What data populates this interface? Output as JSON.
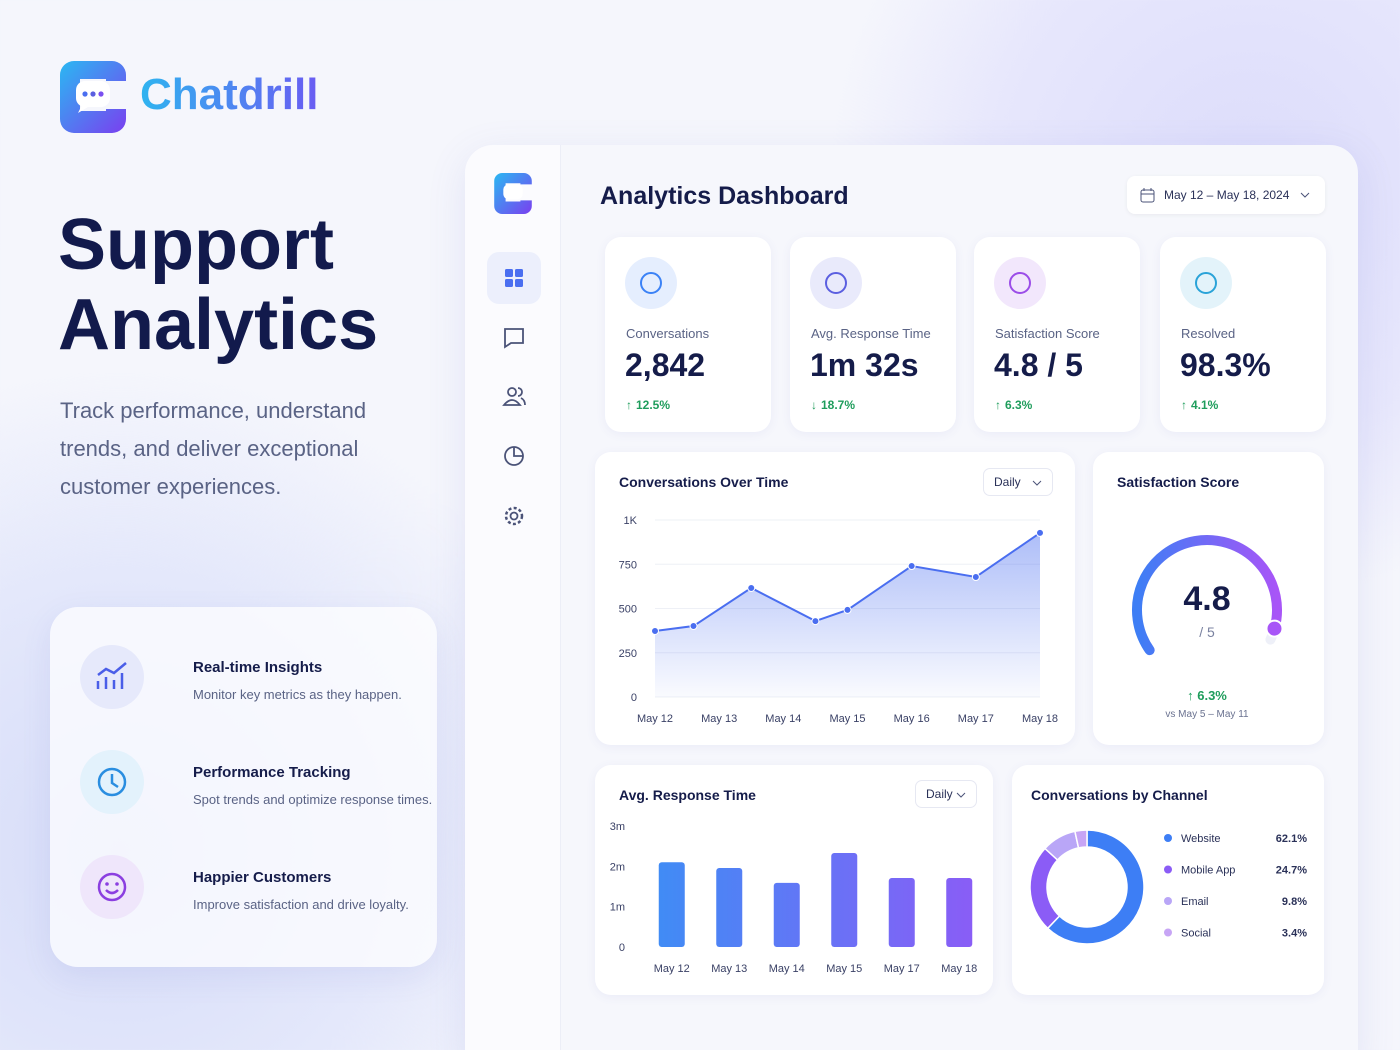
{
  "brand": {
    "name": "Chatdrill"
  },
  "hero": {
    "title_line1": "Support",
    "title_line2": "Analytics",
    "subtitle": "Track performance, understand trends, and deliver exceptional customer experiences."
  },
  "features": [
    {
      "title": "Real-time Insights",
      "text": "Monitor key metrics as they happen."
    },
    {
      "title": "Performance Tracking",
      "text": "Spot trends and optimize response times."
    },
    {
      "title": "Happier Customers",
      "text": "Improve satisfaction and drive loyalty."
    }
  ],
  "dashboard": {
    "title": "Analytics Dashboard",
    "date_range": "May 12 – May 18, 2024",
    "kpis": [
      {
        "label": "Conversations",
        "value": "2,842",
        "change": "12.5%",
        "direction": "up",
        "color": "#3b82f6"
      },
      {
        "label": "Avg. Response Time",
        "value": "1m 32s",
        "change": "18.7%",
        "direction": "down",
        "color": "#5b5fe0"
      },
      {
        "label": "Satisfaction Score",
        "value": "4.8 / 5",
        "change": "6.3%",
        "direction": "up",
        "color": "#9b4de8"
      },
      {
        "label": "Resolved",
        "value": "98.3%",
        "change": "4.1%",
        "direction": "up",
        "color": "#2aa3d8"
      }
    ],
    "conversations_chart": {
      "type": "line",
      "title": "Conversations Over Time",
      "period": "Daily",
      "x": [
        0,
        0.6,
        1.5,
        2.5,
        3,
        4,
        5,
        6
      ],
      "values": [
        373,
        401,
        616,
        429,
        492,
        740,
        678,
        927
      ],
      "color": "#4a6ef0",
      "xlim": [
        0,
        6
      ],
      "xticks": [
        {
          "value": 0,
          "label": "May 12"
        },
        {
          "value": 1,
          "label": "May 13"
        },
        {
          "value": 2,
          "label": "May 14"
        },
        {
          "value": 3,
          "label": "May 15"
        },
        {
          "value": 4,
          "label": "May 16"
        },
        {
          "value": 5,
          "label": "May 17"
        },
        {
          "value": 6,
          "label": "May 18"
        }
      ],
      "ylim": [
        0,
        1000
      ],
      "yticks": [
        0,
        250,
        500,
        750,
        {
          "value": 1000,
          "label": "1K"
        }
      ],
      "grid": true
    },
    "satisfaction_gauge": {
      "type": "gauge",
      "title": "Satisfaction Score",
      "value": 4.8,
      "max": {
        "value": 5,
        "label": "/ 5"
      },
      "change": "6.3%",
      "comparison": "vs May 5 – May 11"
    },
    "response_chart": {
      "type": "bar",
      "title": "Avg. Response Time",
      "period": "Daily",
      "categories": [
        "May 12",
        "May 13",
        "May 14",
        "May 15",
        "May 17",
        "May 18"
      ],
      "values": [
        2.1,
        1.96,
        1.59,
        2.33,
        1.71,
        1.71
      ],
      "ylim": [
        0,
        3
      ],
      "yticks": [
        0,
        {
          "value": 1,
          "label": "1m"
        },
        {
          "value": 2,
          "label": "2m"
        },
        {
          "value": 3,
          "label": "3m"
        }
      ],
      "colors": [
        "#3b8ff5",
        "#8b5cf6"
      ]
    },
    "channel_chart": {
      "type": "donut",
      "title": "Conversations by Channel",
      "categories": [
        "Website",
        "Mobile App",
        "Email",
        "Social"
      ],
      "values": [
        62.1,
        24.7,
        9.8,
        3.4
      ],
      "value_labels": [
        "62.1%",
        "24.7%",
        "9.8%",
        "3.4%"
      ],
      "colors": [
        "#3d7ef5",
        "#8b5cf6",
        "#b9a6f7",
        "#c7a5f5"
      ]
    }
  }
}
